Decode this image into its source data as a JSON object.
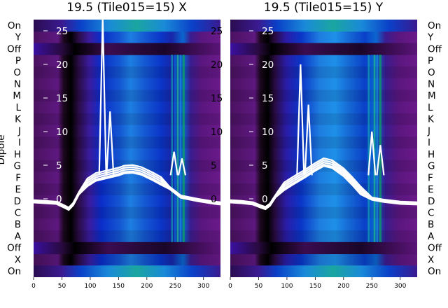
{
  "chart_data": [
    {
      "type": "heatmap",
      "title": "19.5 (Tile015=15) X",
      "ylabel": "Dipole",
      "row_labels": [
        "On",
        "Y",
        "Off",
        "P",
        "O",
        "N",
        "M",
        "L",
        "K",
        "J",
        "I",
        "H",
        "G",
        "F",
        "E",
        "D",
        "C",
        "B",
        "A",
        "Off",
        "X",
        "On"
      ],
      "x_ticks": [
        0,
        50,
        100,
        150,
        200,
        250,
        300
      ],
      "xlim": [
        0,
        330
      ],
      "overlay_ticks": [
        25,
        20,
        15,
        10,
        5,
        0
      ],
      "series": [
        {
          "x": [
            0,
            20,
            40,
            55,
            62,
            70,
            80,
            95,
            110,
            130,
            150,
            160,
            175,
            190,
            210,
            225,
            240,
            260,
            290,
            320,
            330
          ],
          "y": [
            -0.4,
            -0.5,
            -0.6,
            -1.2,
            -1.5,
            -0.8,
            0.8,
            2.4,
            3.2,
            3.6,
            4.0,
            4.3,
            4.4,
            4.1,
            3.3,
            2.6,
            1.6,
            0.3,
            -0.2,
            -0.6,
            -0.7
          ]
        }
      ],
      "spikes": [
        {
          "x": 122,
          "y": 27
        },
        {
          "x": 135,
          "y": 13
        },
        {
          "x": 248,
          "y": 7
        },
        {
          "x": 262,
          "y": 6
        }
      ]
    },
    {
      "type": "heatmap",
      "title": "19.5 (Tile015=15) Y",
      "row_labels": [
        "On",
        "Y",
        "Off",
        "P",
        "O",
        "N",
        "M",
        "L",
        "K",
        "J",
        "I",
        "H",
        "G",
        "F",
        "E",
        "D",
        "C",
        "B",
        "A",
        "Off",
        "X",
        "On"
      ],
      "x_ticks": [
        0,
        50,
        100,
        150,
        200,
        250,
        300
      ],
      "xlim": [
        0,
        330
      ],
      "overlay_ticks": [
        25,
        20,
        15,
        10,
        5,
        0
      ],
      "series": [
        {
          "x": [
            0,
            20,
            40,
            55,
            62,
            70,
            80,
            95,
            110,
            130,
            150,
            165,
            180,
            200,
            215,
            230,
            250,
            270,
            300,
            330
          ],
          "y": [
            -0.4,
            -0.5,
            -0.7,
            -1.2,
            -1.4,
            -0.9,
            0.4,
            1.8,
            2.6,
            3.6,
            4.7,
            5.4,
            5.1,
            3.9,
            2.6,
            1.2,
            0.0,
            -0.3,
            -0.6,
            -0.7
          ]
        }
      ],
      "spikes": [
        {
          "x": 124,
          "y": 20
        },
        {
          "x": 138,
          "y": 14
        },
        {
          "x": 250,
          "y": 10
        },
        {
          "x": 265,
          "y": 8
        }
      ]
    }
  ]
}
